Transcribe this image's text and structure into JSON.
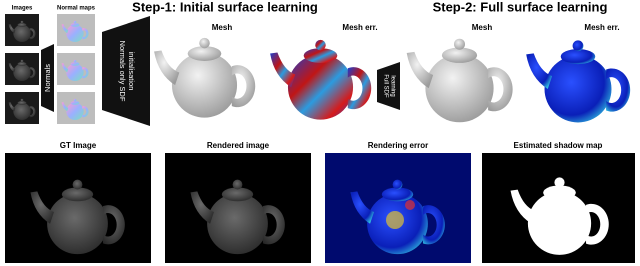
{
  "top": {
    "images_label": "Images",
    "normal_maps_label": "Normal maps",
    "normals_arrow": "Normals",
    "step1_arrow": [
      "Normals only SDF",
      "initialisation"
    ],
    "step1_title": "Step-1: Initial surface learning",
    "step1_mesh": "Mesh",
    "step1_mesh_err": "Mesh err.",
    "step2_arrow": [
      "Full SDF",
      "learning"
    ],
    "step2_title": "Step-2: Full surface learning",
    "step2_mesh": "Mesh",
    "step2_mesh_err": "Mesh err."
  },
  "bottom": {
    "panels": [
      "GT Image",
      "Rendered image",
      "Rendering error",
      "Estimated shadow map"
    ]
  }
}
